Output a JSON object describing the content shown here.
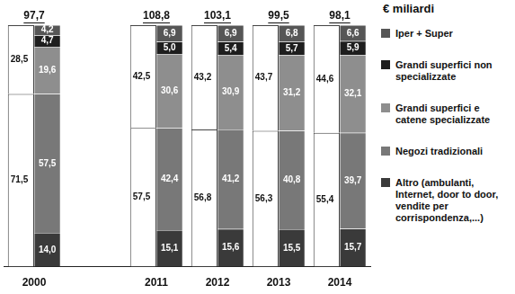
{
  "chart_data": {
    "type": "bar",
    "subtitle": "€ miliardi",
    "categories": [
      "2000",
      null,
      "2011",
      "2012",
      "2013",
      "2014"
    ],
    "stacked": true,
    "data_labels": true,
    "legend": "right",
    "tick_labels": "x",
    "grid": false,
    "ylim": [
      0,
      100
    ],
    "totals": [
      97.7,
      null,
      108.8,
      103.1,
      99.5,
      98.1
    ],
    "total_labels": [
      "97,7",
      null,
      "108,8",
      "103,1",
      "99,5",
      "98,1"
    ],
    "outline_series": [
      {
        "color": "#ffffff",
        "values": [
          71.5,
          null,
          57.5,
          56.8,
          56.3,
          55.4
        ],
        "value_labels": [
          "71,5",
          null,
          "57,5",
          "56,8",
          "56,3",
          "55,4"
        ]
      },
      {
        "color": "#ffffff",
        "values": [
          28.5,
          null,
          42.5,
          43.2,
          43.7,
          44.6
        ],
        "value_labels": [
          "28,5",
          null,
          "42,5",
          "43,2",
          "43,7",
          "44,6"
        ]
      }
    ],
    "series": [
      {
        "name": "Altro (ambulanti, Internet, door to door, vendite per corrispondenza,...)",
        "color": "#3a3a3a",
        "values": [
          14.0,
          null,
          15.1,
          15.6,
          15.5,
          15.7
        ],
        "value_labels": [
          "14,0",
          null,
          "15,1",
          "15,6",
          "15,5",
          "15,7"
        ]
      },
      {
        "name": "Negozi tradizionali",
        "color": "#787878",
        "values": [
          57.5,
          null,
          42.4,
          41.2,
          40.8,
          39.7
        ],
        "value_labels": [
          "57,5",
          null,
          "42,4",
          "41,2",
          "40,8",
          "39,7"
        ]
      },
      {
        "name": "Grandi superfici e catene specializzate",
        "color": "#8e8e8e",
        "values": [
          19.6,
          null,
          30.6,
          30.9,
          31.2,
          32.1
        ],
        "value_labels": [
          "19,6",
          null,
          "30,6",
          "30,9",
          "31,2",
          "32,1"
        ]
      },
      {
        "name": "Grandi superfici non specializzate",
        "color": "#1e1e1e",
        "values": [
          4.7,
          null,
          5.0,
          5.4,
          5.7,
          5.9
        ],
        "value_labels": [
          "4,7",
          null,
          "5,0",
          "5,4",
          "5,7",
          "5,9"
        ]
      },
      {
        "name": "Iper + Super",
        "color": "#565656",
        "values": [
          4.2,
          null,
          6.9,
          6.9,
          6.8,
          6.6
        ],
        "value_labels": [
          "4,2",
          null,
          "6,9",
          "6,9",
          "6,8",
          "6,6"
        ]
      }
    ]
  }
}
